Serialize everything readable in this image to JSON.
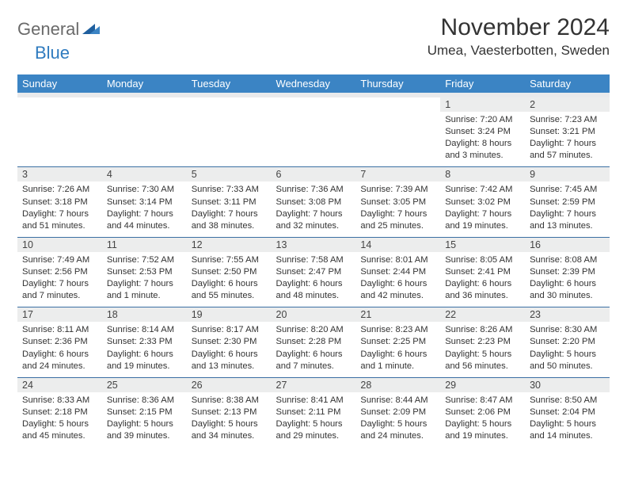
{
  "brand": {
    "part1": "General",
    "part2": "Blue"
  },
  "title": "November 2024",
  "location": "Umea, Vaesterbotten, Sweden",
  "colors": {
    "header_bg": "#3b84c4",
    "header_text": "#ffffff",
    "daynum_bg": "#eceded",
    "row_divider": "#3b6fa3",
    "logo_gray": "#6a6a6a",
    "logo_blue": "#2f7bbf"
  },
  "weekdays": [
    "Sunday",
    "Monday",
    "Tuesday",
    "Wednesday",
    "Thursday",
    "Friday",
    "Saturday"
  ],
  "weeks": [
    {
      "nums": [
        "",
        "",
        "",
        "",
        "",
        "1",
        "2"
      ],
      "details": [
        "",
        "",
        "",
        "",
        "",
        "Sunrise: 7:20 AM\nSunset: 3:24 PM\nDaylight: 8 hours and 3 minutes.",
        "Sunrise: 7:23 AM\nSunset: 3:21 PM\nDaylight: 7 hours and 57 minutes."
      ]
    },
    {
      "nums": [
        "3",
        "4",
        "5",
        "6",
        "7",
        "8",
        "9"
      ],
      "details": [
        "Sunrise: 7:26 AM\nSunset: 3:18 PM\nDaylight: 7 hours and 51 minutes.",
        "Sunrise: 7:30 AM\nSunset: 3:14 PM\nDaylight: 7 hours and 44 minutes.",
        "Sunrise: 7:33 AM\nSunset: 3:11 PM\nDaylight: 7 hours and 38 minutes.",
        "Sunrise: 7:36 AM\nSunset: 3:08 PM\nDaylight: 7 hours and 32 minutes.",
        "Sunrise: 7:39 AM\nSunset: 3:05 PM\nDaylight: 7 hours and 25 minutes.",
        "Sunrise: 7:42 AM\nSunset: 3:02 PM\nDaylight: 7 hours and 19 minutes.",
        "Sunrise: 7:45 AM\nSunset: 2:59 PM\nDaylight: 7 hours and 13 minutes."
      ]
    },
    {
      "nums": [
        "10",
        "11",
        "12",
        "13",
        "14",
        "15",
        "16"
      ],
      "details": [
        "Sunrise: 7:49 AM\nSunset: 2:56 PM\nDaylight: 7 hours and 7 minutes.",
        "Sunrise: 7:52 AM\nSunset: 2:53 PM\nDaylight: 7 hours and 1 minute.",
        "Sunrise: 7:55 AM\nSunset: 2:50 PM\nDaylight: 6 hours and 55 minutes.",
        "Sunrise: 7:58 AM\nSunset: 2:47 PM\nDaylight: 6 hours and 48 minutes.",
        "Sunrise: 8:01 AM\nSunset: 2:44 PM\nDaylight: 6 hours and 42 minutes.",
        "Sunrise: 8:05 AM\nSunset: 2:41 PM\nDaylight: 6 hours and 36 minutes.",
        "Sunrise: 8:08 AM\nSunset: 2:39 PM\nDaylight: 6 hours and 30 minutes."
      ]
    },
    {
      "nums": [
        "17",
        "18",
        "19",
        "20",
        "21",
        "22",
        "23"
      ],
      "details": [
        "Sunrise: 8:11 AM\nSunset: 2:36 PM\nDaylight: 6 hours and 24 minutes.",
        "Sunrise: 8:14 AM\nSunset: 2:33 PM\nDaylight: 6 hours and 19 minutes.",
        "Sunrise: 8:17 AM\nSunset: 2:30 PM\nDaylight: 6 hours and 13 minutes.",
        "Sunrise: 8:20 AM\nSunset: 2:28 PM\nDaylight: 6 hours and 7 minutes.",
        "Sunrise: 8:23 AM\nSunset: 2:25 PM\nDaylight: 6 hours and 1 minute.",
        "Sunrise: 8:26 AM\nSunset: 2:23 PM\nDaylight: 5 hours and 56 minutes.",
        "Sunrise: 8:30 AM\nSunset: 2:20 PM\nDaylight: 5 hours and 50 minutes."
      ]
    },
    {
      "nums": [
        "24",
        "25",
        "26",
        "27",
        "28",
        "29",
        "30"
      ],
      "details": [
        "Sunrise: 8:33 AM\nSunset: 2:18 PM\nDaylight: 5 hours and 45 minutes.",
        "Sunrise: 8:36 AM\nSunset: 2:15 PM\nDaylight: 5 hours and 39 minutes.",
        "Sunrise: 8:38 AM\nSunset: 2:13 PM\nDaylight: 5 hours and 34 minutes.",
        "Sunrise: 8:41 AM\nSunset: 2:11 PM\nDaylight: 5 hours and 29 minutes.",
        "Sunrise: 8:44 AM\nSunset: 2:09 PM\nDaylight: 5 hours and 24 minutes.",
        "Sunrise: 8:47 AM\nSunset: 2:06 PM\nDaylight: 5 hours and 19 minutes.",
        "Sunrise: 8:50 AM\nSunset: 2:04 PM\nDaylight: 5 hours and 14 minutes."
      ]
    }
  ]
}
